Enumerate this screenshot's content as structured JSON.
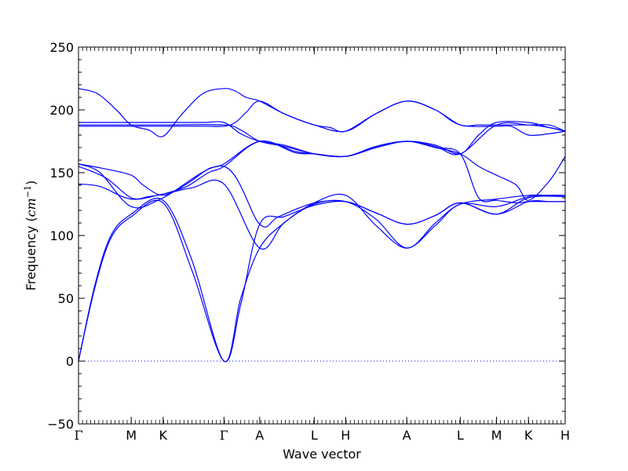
{
  "chart_data": {
    "type": "line",
    "title": "",
    "xlabel": "Wave vector",
    "ylabel_text": "Frequency (",
    "ylabel_math": "cm",
    "ylabel_exp": "−1",
    "ylabel_close": ")",
    "ylim": [
      -50,
      250
    ],
    "xlim": [
      0,
      9
    ],
    "yticks": [
      -50,
      0,
      50,
      100,
      150,
      200,
      250
    ],
    "ytick_labels": [
      "−50",
      "0",
      "50",
      "100",
      "150",
      "200",
      "250"
    ],
    "grid": false,
    "legend": "none",
    "line_color": "#0000ff",
    "zero_line_color": "#0000ff",
    "high_symmetry_points": [
      {
        "label": "Γ",
        "x": 0.0
      },
      {
        "label": "M",
        "x": 0.975
      },
      {
        "label": "K",
        "x": 1.565
      },
      {
        "label": "Γ",
        "x": 2.69
      },
      {
        "label": "A",
        "x": 3.35
      },
      {
        "label": "L",
        "x": 4.36
      },
      {
        "label": "H",
        "x": 4.94
      },
      {
        "label": "A",
        "x": 6.07
      },
      {
        "label": "L",
        "x": 7.06
      },
      {
        "label": "M",
        "x": 7.73
      },
      {
        "label": "K",
        "x": 8.32
      },
      {
        "label": "H",
        "x": 9.0
      }
    ],
    "series": [
      {
        "x": [
          0,
          0.35,
          0.7,
          0.975,
          1.3,
          1.565,
          1.9,
          2.3,
          2.69,
          2.9,
          3.1,
          3.35,
          3.8,
          4.36,
          4.65,
          4.94,
          5.5,
          6.07,
          6.6,
          7.06,
          7.4,
          7.73,
          8.0,
          8.32,
          8.7,
          9.0
        ],
        "values": [
          217,
          213,
          200,
          188,
          184,
          179,
          196,
          213,
          217,
          215,
          210,
          207,
          197,
          188,
          186,
          183,
          197,
          207,
          200,
          188,
          188,
          188,
          188,
          188,
          188,
          183
        ]
      },
      {
        "x": [
          0,
          0.975,
          1.565,
          2.3,
          2.69,
          3.0,
          3.35,
          3.8,
          4.36,
          4.94,
          5.5,
          6.07,
          6.6,
          7.06,
          7.4,
          7.73,
          8.32,
          8.7,
          9.0
        ],
        "values": [
          190,
          190,
          190,
          190,
          190,
          181,
          175,
          172,
          165,
          163,
          170,
          175,
          172,
          165,
          180,
          190,
          190,
          186,
          183
        ]
      },
      {
        "x": [
          0,
          0.975,
          1.565,
          2.69,
          3.0,
          3.35,
          3.8,
          4.36,
          4.94,
          5.5,
          6.07,
          6.6,
          7.06,
          7.73,
          8.32,
          8.7,
          9.0
        ],
        "values": [
          188,
          188,
          188,
          188,
          184,
          175,
          171,
          165,
          163,
          171,
          175,
          171,
          165,
          188,
          188,
          186,
          183
        ]
      },
      {
        "x": [
          0,
          0.975,
          1.565,
          2.3,
          2.69,
          2.9,
          3.1,
          3.35,
          3.8,
          4.36,
          4.94,
          5.5,
          6.07,
          6.6,
          7.06,
          7.73,
          8.0,
          8.32,
          8.7,
          9.0
        ],
        "values": [
          187,
          187,
          187,
          187,
          187,
          190,
          198,
          207,
          197,
          188,
          183,
          197,
          207,
          200,
          188,
          187,
          187,
          180,
          181,
          183
        ]
      },
      {
        "x": [
          0,
          0.5,
          0.975,
          1.2,
          1.565,
          2.0,
          2.4,
          2.69,
          3.35,
          4.0,
          4.36,
          4.94,
          5.5,
          6.07,
          6.6,
          7.06,
          7.4,
          7.73,
          8.1,
          8.32,
          8.7,
          9.0
        ],
        "values": [
          157,
          153,
          148,
          140,
          132,
          141,
          153,
          157,
          175,
          167,
          165,
          163,
          170,
          175,
          170,
          165,
          155,
          148,
          140,
          128,
          143,
          163
        ]
      },
      {
        "x": [
          0,
          0.5,
          0.975,
          1.3,
          1.565,
          2.0,
          2.4,
          2.69,
          3.35,
          4.0,
          4.36,
          4.94,
          5.5,
          6.07,
          6.6,
          7.06,
          7.4,
          7.73,
          8.1,
          8.32,
          8.7,
          9.0
        ],
        "values": [
          155,
          146,
          130,
          131,
          133,
          139,
          150,
          155,
          175,
          166,
          165,
          163,
          170,
          175,
          170,
          165,
          130,
          128,
          126,
          127,
          127,
          127
        ]
      },
      {
        "x": [
          0,
          0.4,
          0.975,
          1.565,
          2.1,
          2.69,
          3.35,
          3.8,
          4.36,
          4.94,
          5.5,
          6.07,
          6.6,
          7.06,
          7.73,
          8.32,
          8.7,
          9.0
        ],
        "values": [
          141,
          139,
          129,
          133,
          138,
          141,
          90,
          110,
          125,
          127,
          113,
          90,
          110,
          125,
          129,
          132,
          132,
          132
        ]
      },
      {
        "x": [
          0,
          0.3,
          0.6,
          0.975,
          1.565,
          2.1,
          2.69,
          3.0,
          3.35,
          3.8,
          4.36,
          4.94,
          5.5,
          6.07,
          6.6,
          7.06,
          7.73,
          8.32,
          8.7,
          9.0
        ],
        "values": [
          0,
          60,
          100,
          117,
          128,
          80,
          0,
          50,
          90,
          110,
          126,
          132,
          108,
          90,
          108,
          125,
          123,
          131,
          132,
          132
        ]
      },
      {
        "x": [
          0,
          0.3,
          0.6,
          0.975,
          1.565,
          2.1,
          2.69,
          3.0,
          3.35,
          3.8,
          4.36,
          4.94,
          5.5,
          6.07,
          6.6,
          7.06,
          7.73,
          8.32,
          8.7,
          9.0
        ],
        "values": [
          0,
          58,
          98,
          115,
          126,
          72,
          0,
          45,
          109,
          115,
          124,
          127,
          118,
          109,
          116,
          126,
          117,
          127,
          127,
          127
        ]
      },
      {
        "x": [
          0,
          0.4,
          0.975,
          1.565,
          2.69,
          3.35,
          3.7,
          4.36,
          4.94,
          5.5,
          6.07,
          6.6,
          7.06,
          7.73,
          8.32,
          9.0
        ],
        "values": [
          157,
          150,
          123,
          130,
          155,
          109,
          115,
          126,
          127,
          118,
          109,
          116,
          126,
          117,
          130,
          131
        ]
      }
    ]
  }
}
